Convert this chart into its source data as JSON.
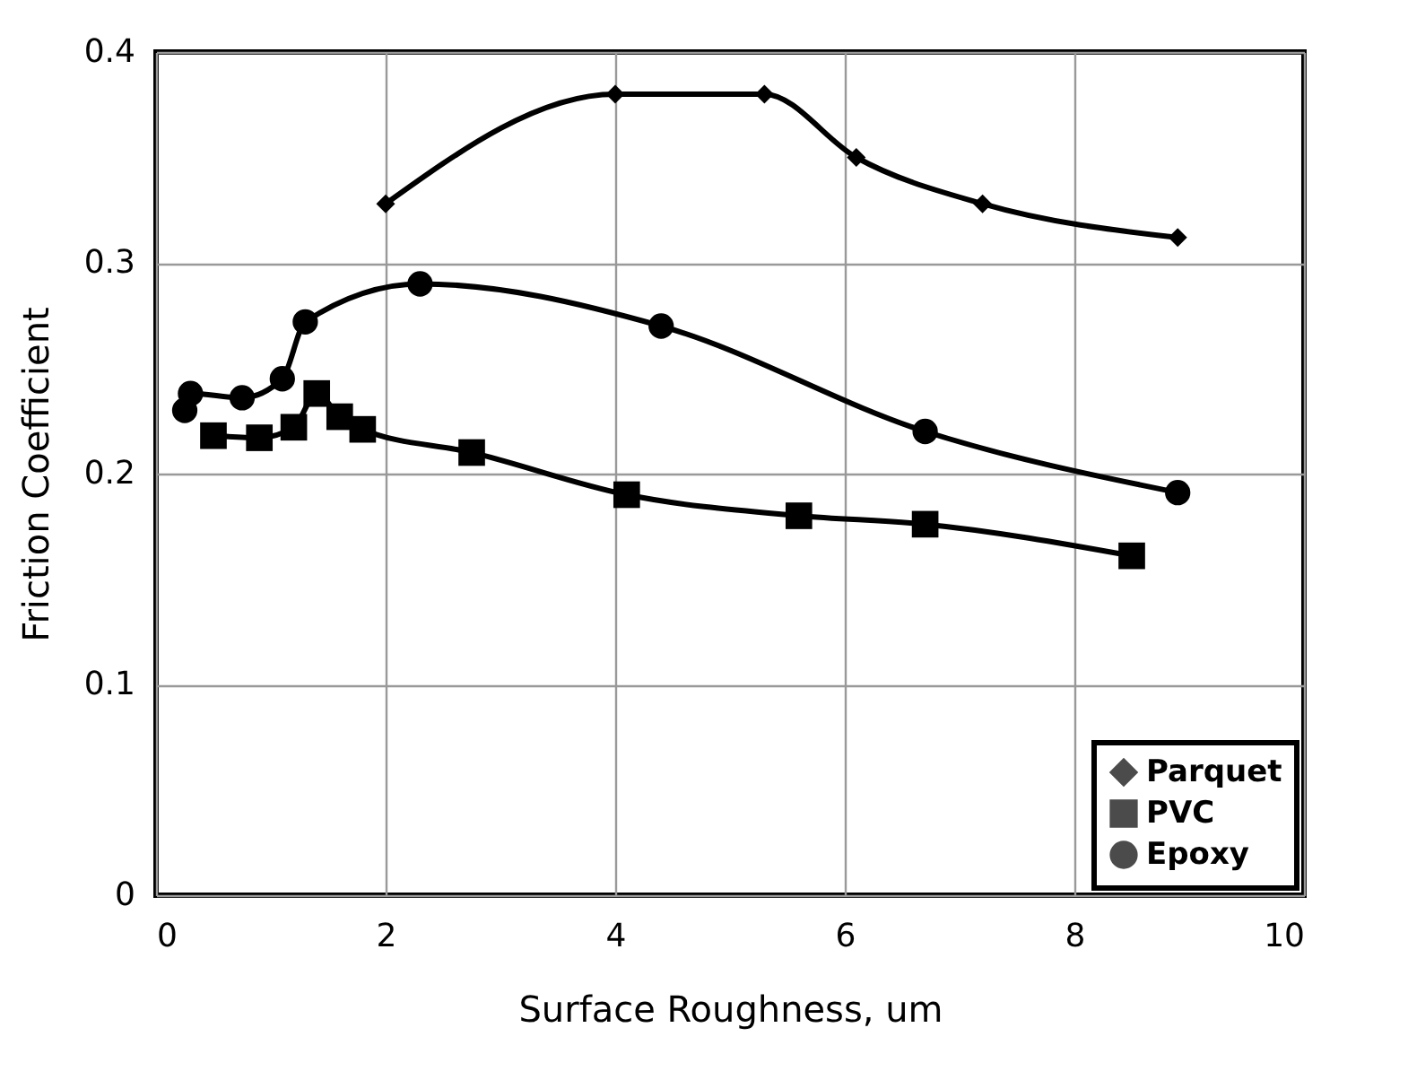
{
  "chart_data": {
    "type": "line",
    "xlabel": "Surface Roughness, um",
    "ylabel": "Friction Coefficient",
    "xlim": [
      0,
      10
    ],
    "xticks": [
      0,
      2,
      4,
      6,
      8,
      10
    ],
    "ylim": [
      0,
      0.4
    ],
    "yticks": [
      0,
      0.1,
      0.2,
      0.3,
      0.4
    ],
    "grid": true,
    "legend": "bottom right",
    "series": [
      {
        "name": "Parquet",
        "color": "#000000",
        "marker": "diamond",
        "x": [
          2,
          4,
          5.3,
          6.1,
          7.2,
          8.9
        ],
        "values": [
          0.328,
          0.38,
          0.38,
          0.35,
          0.328,
          0.312
        ]
      },
      {
        "name": "PVC",
        "color": "#000000",
        "marker": "square",
        "x": [
          0.5,
          0.9,
          1.2,
          1.4,
          1.6,
          1.8,
          2.75,
          4.1,
          5.6,
          6.7,
          8.5
        ],
        "values": [
          0.218,
          0.217,
          0.222,
          0.238,
          0.227,
          0.221,
          0.21,
          0.19,
          0.18,
          0.176,
          0.161
        ]
      },
      {
        "name": "Epoxy",
        "color": "#000000",
        "marker": "circle",
        "x": [
          0.25,
          0.3,
          0.75,
          1.1,
          1.3,
          2.3,
          4.4,
          6.7,
          8.9
        ],
        "values": [
          0.23,
          0.238,
          0.236,
          0.245,
          0.272,
          0.29,
          0.27,
          0.22,
          0.191
        ]
      }
    ]
  }
}
